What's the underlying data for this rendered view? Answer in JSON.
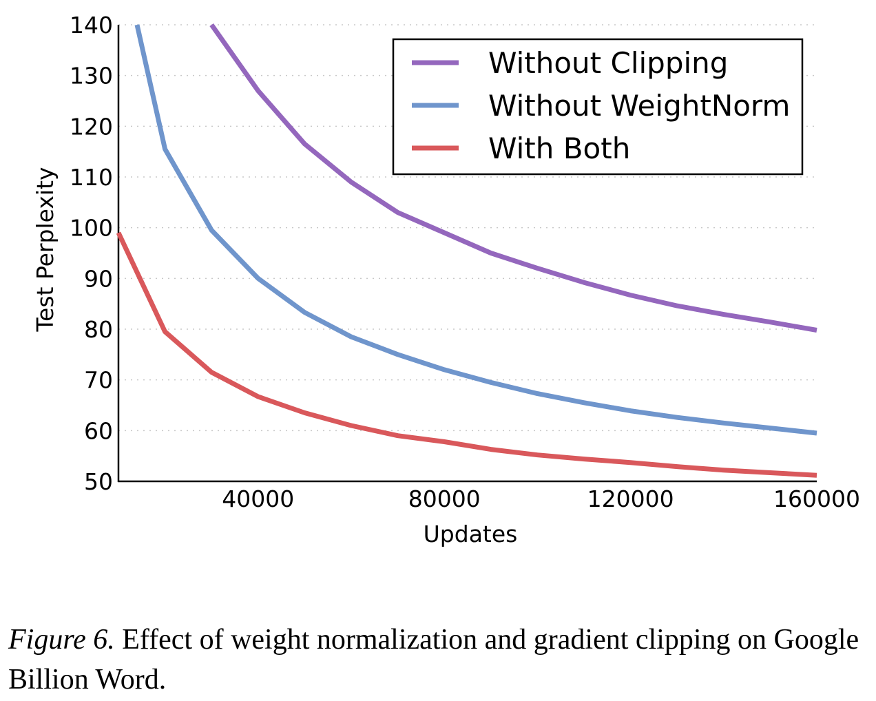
{
  "chart_data": {
    "type": "line",
    "xlabel": "Updates",
    "ylabel": "Test Perplexity",
    "xlim": [
      10000,
      160000
    ],
    "ylim": [
      50,
      140
    ],
    "xticks": [
      40000,
      80000,
      120000,
      160000
    ],
    "yticks": [
      50,
      60,
      70,
      80,
      90,
      100,
      110,
      120,
      130,
      140
    ],
    "grid": "horizontal dotted",
    "legend_position": "top-right",
    "series": [
      {
        "name": "Without Clipping",
        "color": "#9467bd",
        "x": [
          30000,
          40000,
          50000,
          60000,
          70000,
          80000,
          90000,
          100000,
          110000,
          120000,
          130000,
          140000,
          150000,
          160000
        ],
        "y": [
          140,
          127,
          116.5,
          109,
          103,
          99,
          95,
          92,
          89.2,
          86.7,
          84.6,
          82.9,
          81.4,
          79.8
        ]
      },
      {
        "name": "Without WeightNorm",
        "color": "#6f95cc",
        "x": [
          14000,
          20000,
          30000,
          40000,
          50000,
          60000,
          70000,
          80000,
          90000,
          100000,
          110000,
          120000,
          130000,
          140000,
          150000,
          160000
        ],
        "y": [
          140,
          115.5,
          99.5,
          90,
          83.3,
          78.5,
          75,
          72,
          69.5,
          67.3,
          65.5,
          63.9,
          62.6,
          61.5,
          60.5,
          59.5
        ]
      },
      {
        "name": "With Both",
        "color": "#d9585b",
        "x": [
          10000,
          20000,
          30000,
          40000,
          50000,
          60000,
          70000,
          80000,
          90000,
          100000,
          110000,
          120000,
          130000,
          140000,
          150000,
          160000
        ],
        "y": [
          99,
          79.5,
          71.5,
          66.7,
          63.5,
          61,
          59,
          57.8,
          56.3,
          55.2,
          54.4,
          53.7,
          52.9,
          52.2,
          51.7,
          51.2
        ]
      }
    ]
  },
  "caption": {
    "figure_label": "Figure 6.",
    "text": " Effect of weight normalization and gradient clipping on Google Billion Word."
  }
}
